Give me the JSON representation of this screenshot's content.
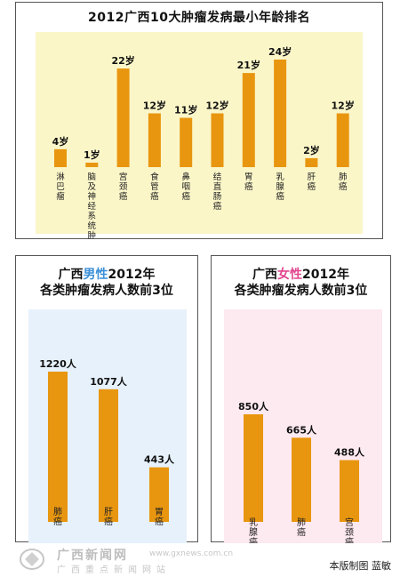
{
  "colors": {
    "bar": "#e8960f",
    "bg1": "#fbf6c8",
    "bg2": "#e6f1fb",
    "bg3": "#fde9f0",
    "male": "#3a8fd8",
    "female": "#e2458e"
  },
  "chart1": {
    "title": "2012广西10大肿瘤发病最小年龄排名"
  },
  "chart2": {
    "title_pre": "广西",
    "title_hl": "男性",
    "title_post": "2012年",
    "title_line2": "各类肿瘤发病人数前3位"
  },
  "chart3": {
    "title_pre": "广西",
    "title_hl": "女性",
    "title_post": "2012年",
    "title_line2": "各类肿瘤发病人数前3位"
  },
  "chart_data": [
    {
      "type": "bar",
      "title": "2012广西10大肿瘤发病最小年龄排名",
      "categories": [
        "淋巴瘤",
        "脑及神经系统肿瘤",
        "宫颈癌",
        "食管癌",
        "鼻咽癌",
        "结直肠癌",
        "胃癌",
        "乳腺癌",
        "肝癌",
        "肺癌"
      ],
      "values": [
        4,
        1,
        22,
        12,
        11,
        12,
        21,
        24,
        2,
        12
      ],
      "data_labels": [
        "4岁",
        "1岁",
        "22岁",
        "12岁",
        "11岁",
        "12岁",
        "21岁",
        "24岁",
        "2岁",
        "12岁"
      ],
      "ylim": [
        0,
        24
      ]
    },
    {
      "type": "bar",
      "title": "广西男性2012年各类肿瘤发病人数前3位",
      "categories": [
        "肺癌",
        "肝癌",
        "胃癌"
      ],
      "values": [
        1220,
        1077,
        443
      ],
      "data_labels": [
        "1220人",
        "1077人",
        "443人"
      ],
      "ylim": [
        0,
        1220
      ]
    },
    {
      "type": "bar",
      "title": "广西女性2012年各类肿瘤发病人数前3位",
      "categories": [
        "乳腺癌",
        "肺癌",
        "宫颈癌"
      ],
      "values": [
        850,
        665,
        488
      ],
      "data_labels": [
        "850人",
        "665人",
        "488人"
      ],
      "ylim": [
        0,
        850
      ]
    }
  ],
  "footer": {
    "credit": "本版制图 蓝敏"
  },
  "watermark": {
    "main": "广西新闻网",
    "url": "www.gxnews.com.cn",
    "sub": "广西重点新闻网站"
  }
}
